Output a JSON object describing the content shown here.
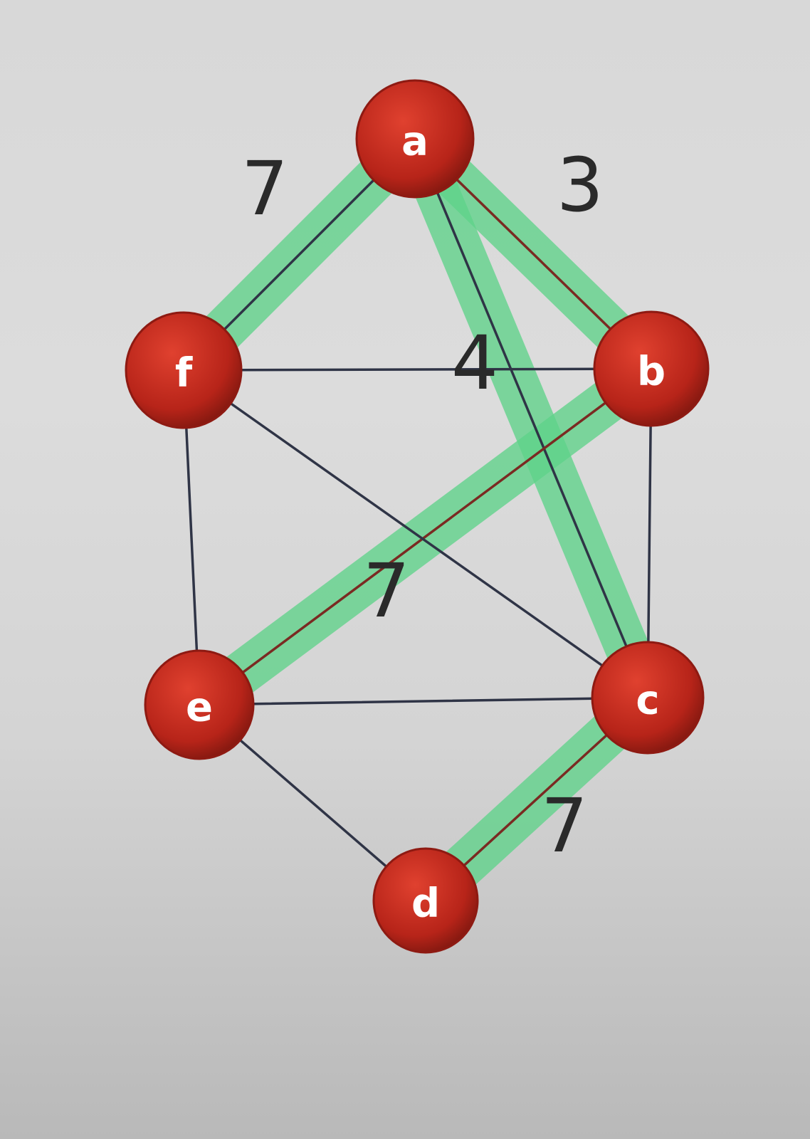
{
  "graph": {
    "nodes": [
      {
        "id": "a",
        "label": "a"
      },
      {
        "id": "b",
        "label": "b"
      },
      {
        "id": "c",
        "label": "c"
      },
      {
        "id": "d",
        "label": "d"
      },
      {
        "id": "e",
        "label": "e"
      },
      {
        "id": "f",
        "label": "f"
      }
    ],
    "edges": [
      {
        "from": "a",
        "to": "f",
        "highlighted": true,
        "weight": "7"
      },
      {
        "from": "a",
        "to": "b",
        "highlighted": true,
        "weight": "3"
      },
      {
        "from": "a",
        "to": "c",
        "highlighted": true,
        "weight": "4"
      },
      {
        "from": "b",
        "to": "e",
        "highlighted": true,
        "weight": "7"
      },
      {
        "from": "c",
        "to": "d",
        "highlighted": true,
        "weight": "7"
      },
      {
        "from": "f",
        "to": "b",
        "highlighted": false
      },
      {
        "from": "f",
        "to": "e",
        "highlighted": false
      },
      {
        "from": "f",
        "to": "c",
        "highlighted": false
      },
      {
        "from": "b",
        "to": "c",
        "highlighted": false
      },
      {
        "from": "e",
        "to": "c",
        "highlighted": false
      },
      {
        "from": "e",
        "to": "d",
        "highlighted": false
      }
    ]
  },
  "colors": {
    "node_fill": "#c0281c",
    "node_fill_dark": "#8e1a12",
    "highlight": "#5fd38a",
    "edge": "#2f3446",
    "edge_red": "#7a2a22",
    "weight_text": "#2a2a2a"
  }
}
